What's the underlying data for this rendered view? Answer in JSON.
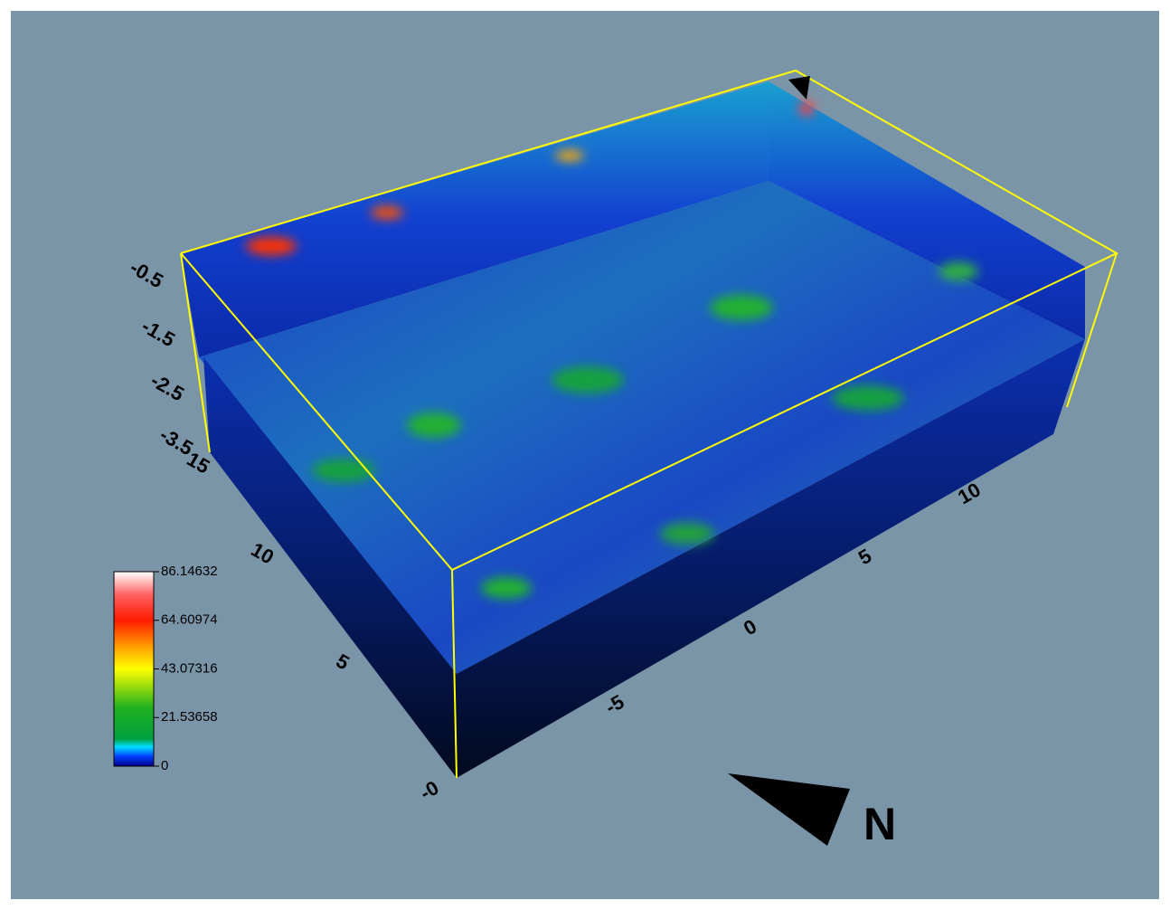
{
  "colorbar": {
    "ticks": [
      86.14632,
      64.60974,
      43.07316,
      21.53658,
      0
    ]
  },
  "depth_axis": {
    "labels": [
      "-0.5",
      "-1.5",
      "-2.5",
      "-3.5"
    ]
  },
  "y_axis": {
    "labels": [
      "15",
      "10",
      "5"
    ]
  },
  "x_axis": {
    "labels": [
      "-0",
      "-5",
      "0",
      "5",
      "10"
    ]
  },
  "compass": {
    "label": "N"
  }
}
